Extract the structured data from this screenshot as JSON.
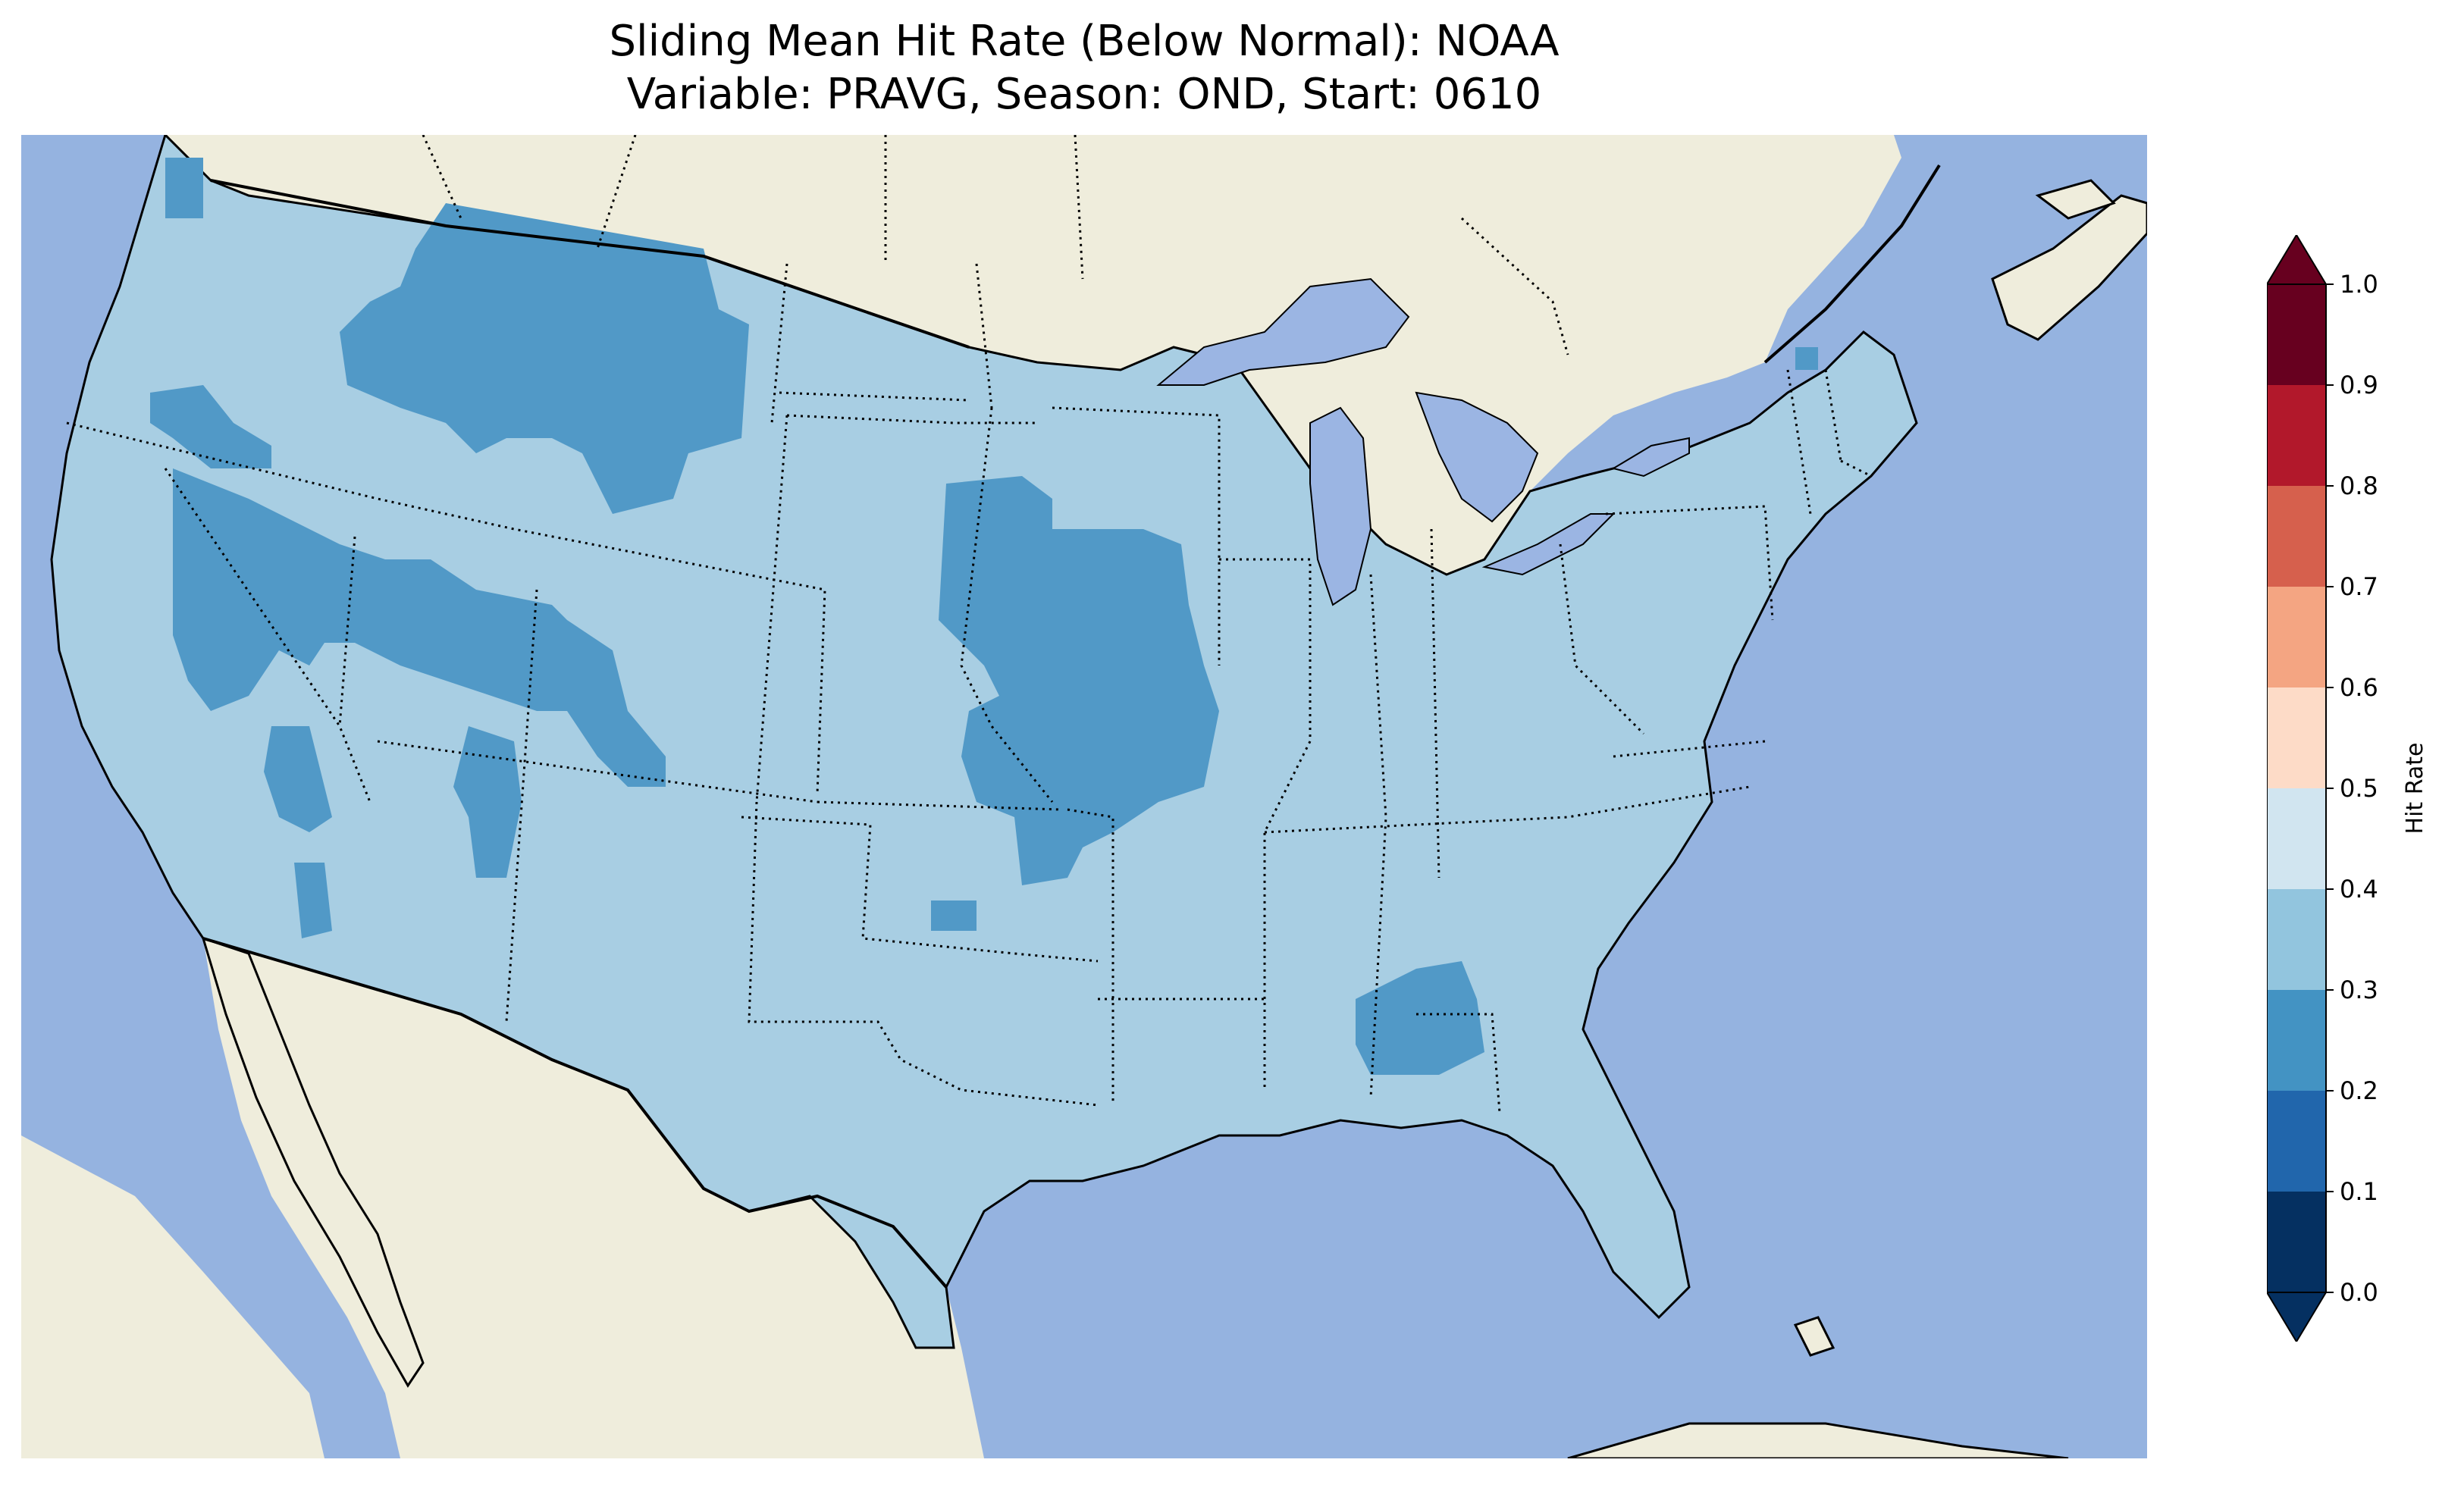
{
  "figure": {
    "title_line1": "Sliding Mean Hit Rate (Below Normal): NOAA",
    "title_line2": "Variable: PRAVG, Season: OND, Start: 0610"
  },
  "map": {
    "region": "Contiguous United States",
    "colors": {
      "ocean": "#95b3e0",
      "land": "#efeddc",
      "lakes": "#9bb5e3"
    }
  },
  "colorbar": {
    "label": "Hit Rate",
    "extend": "both",
    "ticks": [
      "0.0",
      "0.1",
      "0.2",
      "0.3",
      "0.4",
      "0.5",
      "0.6",
      "0.7",
      "0.8",
      "0.9",
      "1.0"
    ],
    "colors": [
      "#053061",
      "#2166ac",
      "#4393c3",
      "#92c5de",
      "#d1e5f0",
      "#fddbc7",
      "#f4a582",
      "#d6604d",
      "#b2182b",
      "#67001f"
    ],
    "bins_present": [
      "0.2-0.3",
      "0.3-0.4"
    ]
  }
}
